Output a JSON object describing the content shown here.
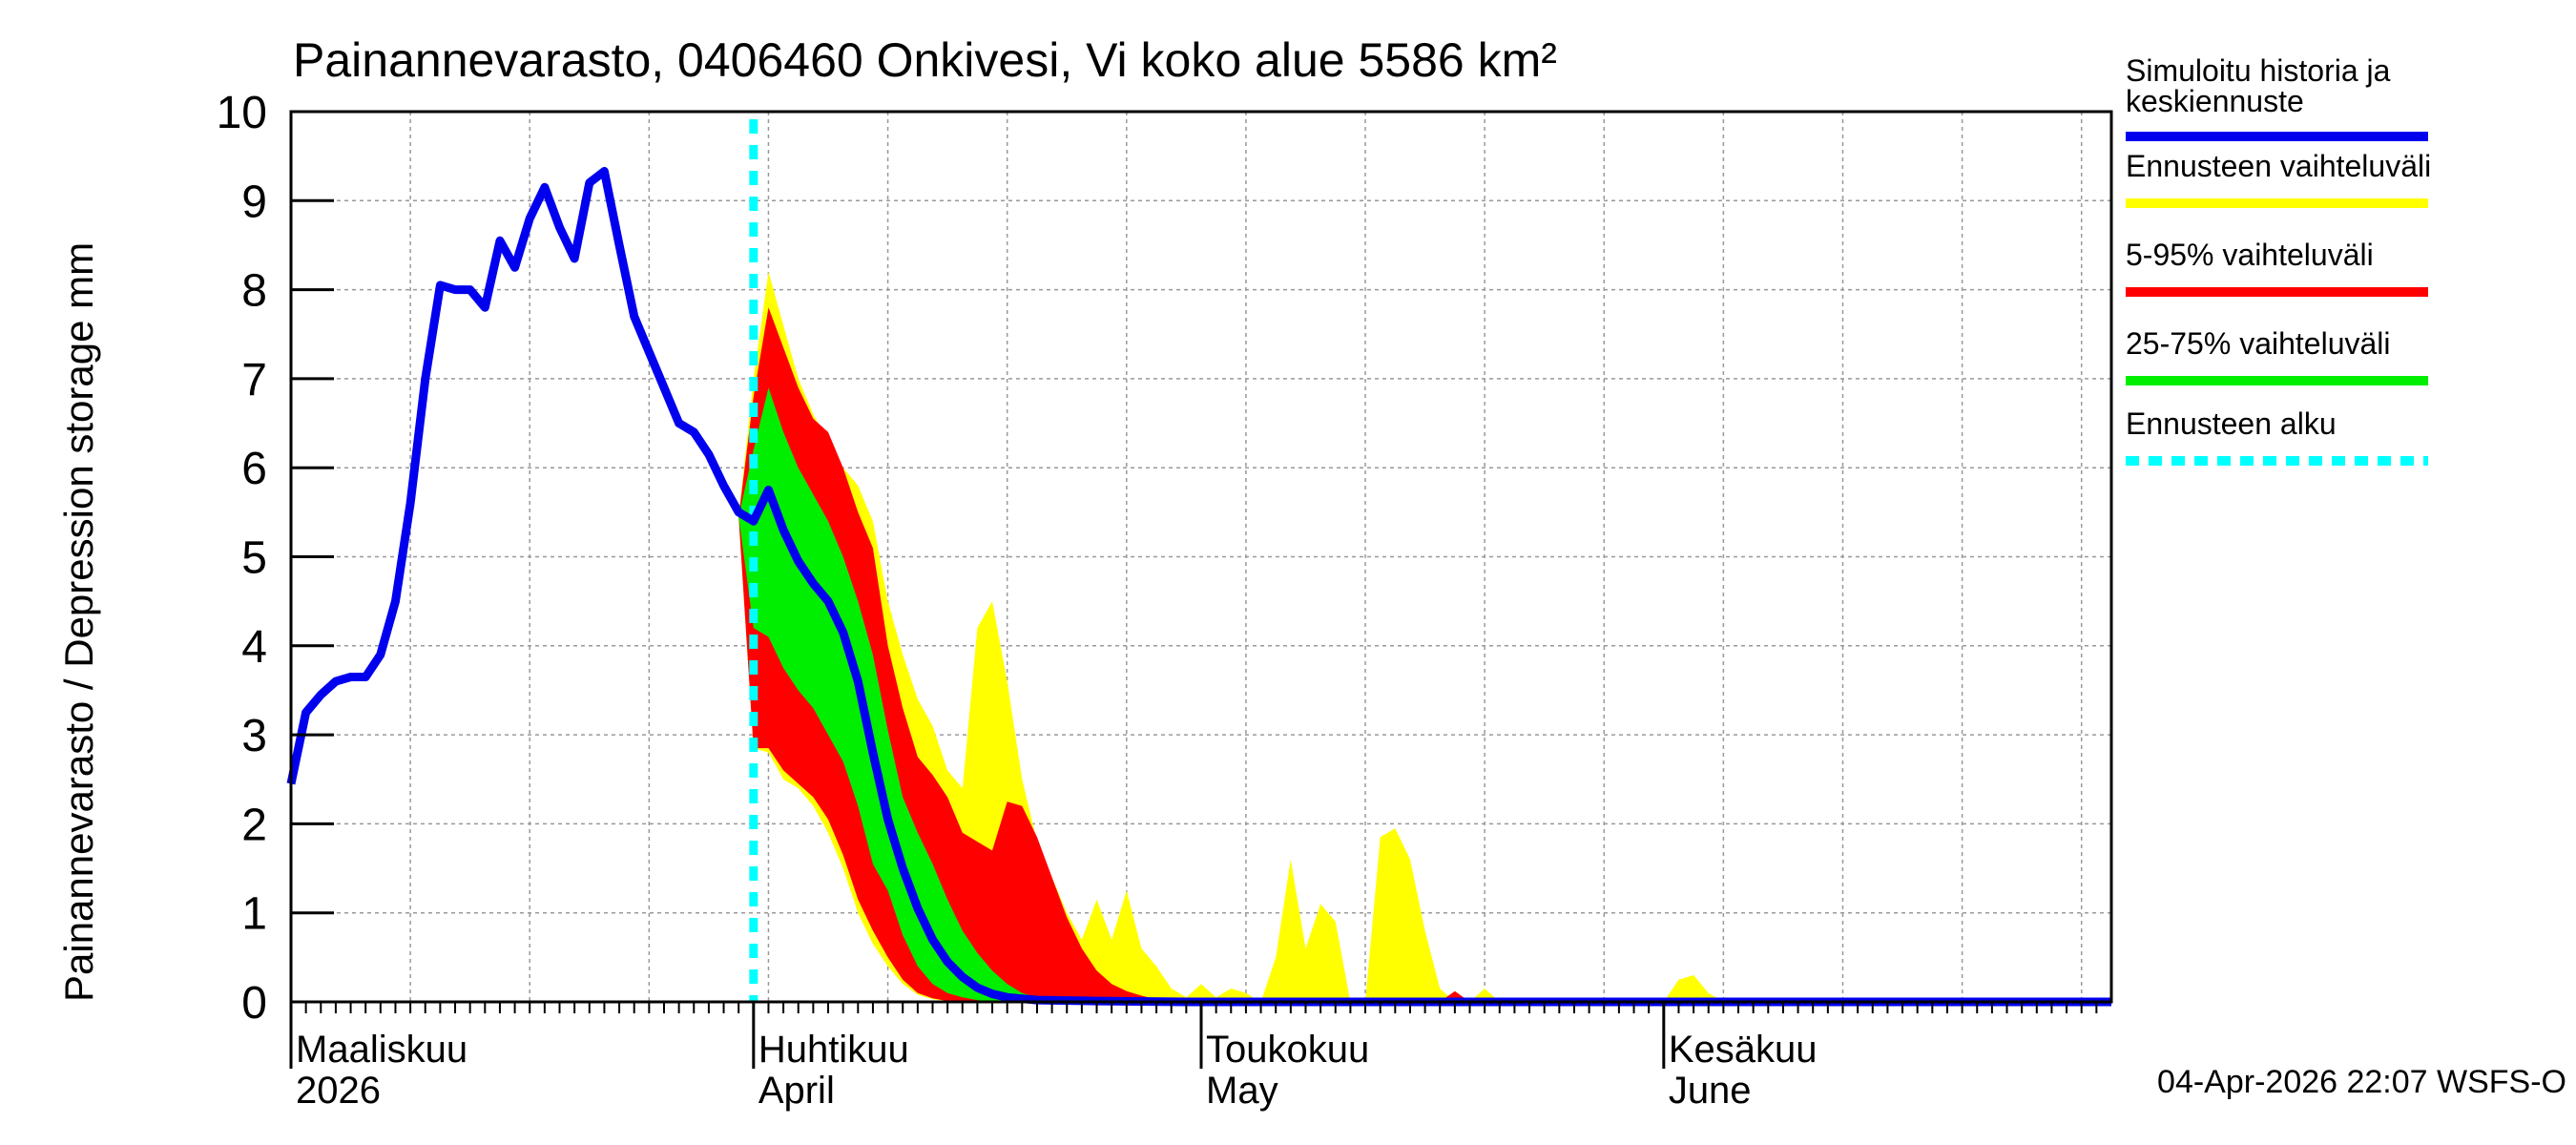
{
  "chart_data": {
    "type": "area",
    "title": "Painannevarasto, 0406460 Onkivesi, Vi koko alue 5586 km²",
    "ylabel": "Painannevarasto / Depression storage    mm",
    "ylim": [
      0,
      10
    ],
    "yticks": [
      0,
      1,
      2,
      3,
      4,
      5,
      6,
      7,
      8,
      9,
      10
    ],
    "x_unit": "day index from 1 March 2026",
    "xlim": [
      0,
      122
    ],
    "forecast_start_day": 31,
    "month_labels": [
      {
        "day": 0,
        "fi": "Maaliskuu",
        "en": "2026"
      },
      {
        "day": 31,
        "fi": "Huhtikuu",
        "en": "April"
      },
      {
        "day": 61,
        "fi": "Toukokuu",
        "en": "May"
      },
      {
        "day": 92,
        "fi": "Kesäkuu",
        "en": "June"
      }
    ],
    "timestamp": "04-Apr-2026 22:07 WSFS-O",
    "legend": [
      {
        "label_line1": "Simuloitu historia ja",
        "label_line2": "keskiennuste",
        "color": "#0000ee",
        "style": "solid"
      },
      {
        "label_line1": "Ennusteen vaihteluväli",
        "label_line2": "",
        "color": "#ffff00",
        "style": "solid"
      },
      {
        "label_line1": "5-95% vaihteluväli",
        "label_line2": "",
        "color": "#ff0000",
        "style": "solid"
      },
      {
        "label_line1": "25-75% vaihteluväli",
        "label_line2": "",
        "color": "#00ee00",
        "style": "solid"
      },
      {
        "label_line1": "Ennusteen alku",
        "label_line2": "",
        "color": "#00ffff",
        "style": "dashed"
      }
    ],
    "series": [
      {
        "name": "Simuloitu historia ja keskiennuste",
        "color": "#0000ee",
        "points": [
          [
            0,
            2.45
          ],
          [
            1,
            3.25
          ],
          [
            2,
            3.45
          ],
          [
            3,
            3.6
          ],
          [
            4,
            3.65
          ],
          [
            5,
            3.65
          ],
          [
            6,
            3.9
          ],
          [
            7,
            4.5
          ],
          [
            8,
            5.6
          ],
          [
            9,
            7.0
          ],
          [
            10,
            8.05
          ],
          [
            11,
            8.0
          ],
          [
            12,
            8.0
          ],
          [
            13,
            7.8
          ],
          [
            14,
            8.55
          ],
          [
            15,
            8.25
          ],
          [
            16,
            8.8
          ],
          [
            17,
            9.15
          ],
          [
            18,
            8.7
          ],
          [
            19,
            8.35
          ],
          [
            20,
            9.2
          ],
          [
            21,
            9.33
          ],
          [
            22,
            8.5
          ],
          [
            23,
            7.7
          ],
          [
            24,
            7.3
          ],
          [
            25,
            6.9
          ],
          [
            26,
            6.5
          ],
          [
            27,
            6.4
          ],
          [
            28,
            6.15
          ],
          [
            29,
            5.8
          ],
          [
            30,
            5.5
          ],
          [
            31,
            5.4
          ],
          [
            32,
            5.75
          ],
          [
            33,
            5.3
          ],
          [
            34,
            4.95
          ],
          [
            35,
            4.7
          ],
          [
            36,
            4.5
          ],
          [
            37,
            4.15
          ],
          [
            38,
            3.6
          ],
          [
            39,
            2.8
          ],
          [
            40,
            2.05
          ],
          [
            41,
            1.5
          ],
          [
            42,
            1.05
          ],
          [
            43,
            0.7
          ],
          [
            44,
            0.45
          ],
          [
            45,
            0.28
          ],
          [
            46,
            0.16
          ],
          [
            47,
            0.09
          ],
          [
            48,
            0.05
          ],
          [
            50,
            0.02
          ],
          [
            54,
            0.01
          ],
          [
            60,
            0
          ],
          [
            122,
            0
          ]
        ]
      },
      {
        "name": "Ennusteen vaihteluväli",
        "color": "#ffff00",
        "upper": [
          [
            30,
            5.45
          ],
          [
            31,
            7.0
          ],
          [
            32,
            8.2
          ],
          [
            33,
            7.6
          ],
          [
            34,
            7.0
          ],
          [
            35,
            6.6
          ],
          [
            36,
            6.3
          ],
          [
            37,
            6.0
          ],
          [
            38,
            5.8
          ],
          [
            39,
            5.4
          ],
          [
            40,
            4.5
          ],
          [
            41,
            3.9
          ],
          [
            42,
            3.4
          ],
          [
            43,
            3.1
          ],
          [
            44,
            2.6
          ],
          [
            45,
            2.4
          ],
          [
            46,
            4.2
          ],
          [
            47,
            4.5
          ],
          [
            48,
            3.6
          ],
          [
            49,
            2.5
          ],
          [
            50,
            1.8
          ],
          [
            51,
            1.4
          ],
          [
            52,
            1.0
          ],
          [
            53,
            0.7
          ],
          [
            54,
            1.15
          ],
          [
            55,
            0.7
          ],
          [
            56,
            1.25
          ],
          [
            57,
            0.6
          ],
          [
            58,
            0.4
          ],
          [
            59,
            0.15
          ],
          [
            60,
            0.05
          ],
          [
            61,
            0.2
          ],
          [
            62,
            0.05
          ],
          [
            63,
            0.15
          ],
          [
            64,
            0.1
          ],
          [
            65,
            0
          ],
          [
            66,
            0.5
          ],
          [
            67,
            1.6
          ],
          [
            68,
            0.6
          ],
          [
            69,
            1.1
          ],
          [
            70,
            0.9
          ],
          [
            71,
            0
          ],
          [
            72,
            0
          ],
          [
            73,
            1.85
          ],
          [
            74,
            1.95
          ],
          [
            75,
            1.6
          ],
          [
            76,
            0.8
          ],
          [
            77,
            0.15
          ],
          [
            78,
            0
          ],
          [
            79,
            0
          ],
          [
            80,
            0.15
          ],
          [
            81,
            0
          ],
          [
            92,
            0
          ],
          [
            93,
            0.25
          ],
          [
            94,
            0.3
          ],
          [
            95,
            0.1
          ],
          [
            96,
            0
          ],
          [
            122,
            0
          ]
        ],
        "lower": [
          [
            30,
            5.45
          ],
          [
            31,
            2.85
          ],
          [
            32,
            2.8
          ],
          [
            33,
            2.5
          ],
          [
            34,
            2.4
          ],
          [
            35,
            2.2
          ],
          [
            36,
            1.9
          ],
          [
            37,
            1.5
          ],
          [
            38,
            1.0
          ],
          [
            39,
            0.65
          ],
          [
            40,
            0.4
          ],
          [
            41,
            0.2
          ],
          [
            42,
            0.08
          ],
          [
            43,
            0.03
          ],
          [
            44,
            0.01
          ],
          [
            45,
            0
          ],
          [
            122,
            0
          ]
        ]
      },
      {
        "name": "5-95% vaihteluväli",
        "color": "#ff0000",
        "upper": [
          [
            30,
            5.45
          ],
          [
            31,
            6.8
          ],
          [
            32,
            7.8
          ],
          [
            33,
            7.35
          ],
          [
            34,
            6.9
          ],
          [
            35,
            6.55
          ],
          [
            36,
            6.4
          ],
          [
            37,
            6.0
          ],
          [
            38,
            5.5
          ],
          [
            39,
            5.1
          ],
          [
            40,
            4.0
          ],
          [
            41,
            3.3
          ],
          [
            42,
            2.75
          ],
          [
            43,
            2.55
          ],
          [
            44,
            2.3
          ],
          [
            45,
            1.9
          ],
          [
            46,
            1.8
          ],
          [
            47,
            1.7
          ],
          [
            48,
            2.25
          ],
          [
            49,
            2.2
          ],
          [
            50,
            1.85
          ],
          [
            51,
            1.4
          ],
          [
            52,
            0.95
          ],
          [
            53,
            0.6
          ],
          [
            54,
            0.35
          ],
          [
            55,
            0.2
          ],
          [
            56,
            0.12
          ],
          [
            57,
            0.07
          ],
          [
            58,
            0.03
          ],
          [
            59,
            0.01
          ],
          [
            60,
            0
          ],
          [
            77,
            0
          ],
          [
            78,
            0.12
          ],
          [
            79,
            0
          ],
          [
            122,
            0
          ]
        ],
        "lower": [
          [
            30,
            5.45
          ],
          [
            31,
            2.85
          ],
          [
            32,
            2.85
          ],
          [
            33,
            2.6
          ],
          [
            34,
            2.45
          ],
          [
            35,
            2.3
          ],
          [
            36,
            2.05
          ],
          [
            37,
            1.65
          ],
          [
            38,
            1.15
          ],
          [
            39,
            0.8
          ],
          [
            40,
            0.5
          ],
          [
            41,
            0.25
          ],
          [
            42,
            0.1
          ],
          [
            43,
            0.04
          ],
          [
            44,
            0.01
          ],
          [
            45,
            0
          ],
          [
            122,
            0
          ]
        ]
      },
      {
        "name": "25-75% vaihteluväli",
        "color": "#00ee00",
        "upper": [
          [
            30,
            5.45
          ],
          [
            31,
            6.2
          ],
          [
            32,
            6.9
          ],
          [
            33,
            6.4
          ],
          [
            34,
            6.0
          ],
          [
            35,
            5.7
          ],
          [
            36,
            5.4
          ],
          [
            37,
            5.0
          ],
          [
            38,
            4.5
          ],
          [
            39,
            3.9
          ],
          [
            40,
            3.05
          ],
          [
            41,
            2.3
          ],
          [
            42,
            1.9
          ],
          [
            43,
            1.55
          ],
          [
            44,
            1.15
          ],
          [
            45,
            0.8
          ],
          [
            46,
            0.55
          ],
          [
            47,
            0.35
          ],
          [
            48,
            0.2
          ],
          [
            49,
            0.1
          ],
          [
            50,
            0.05
          ],
          [
            52,
            0.01
          ],
          [
            54,
            0
          ],
          [
            122,
            0
          ]
        ],
        "lower": [
          [
            30,
            5.45
          ],
          [
            31,
            4.2
          ],
          [
            32,
            4.1
          ],
          [
            33,
            3.75
          ],
          [
            34,
            3.5
          ],
          [
            35,
            3.3
          ],
          [
            36,
            3.0
          ],
          [
            37,
            2.7
          ],
          [
            38,
            2.2
          ],
          [
            39,
            1.55
          ],
          [
            40,
            1.25
          ],
          [
            41,
            0.75
          ],
          [
            42,
            0.4
          ],
          [
            43,
            0.2
          ],
          [
            44,
            0.1
          ],
          [
            45,
            0.05
          ],
          [
            46,
            0.02
          ],
          [
            47,
            0
          ],
          [
            122,
            0
          ]
        ]
      }
    ]
  }
}
